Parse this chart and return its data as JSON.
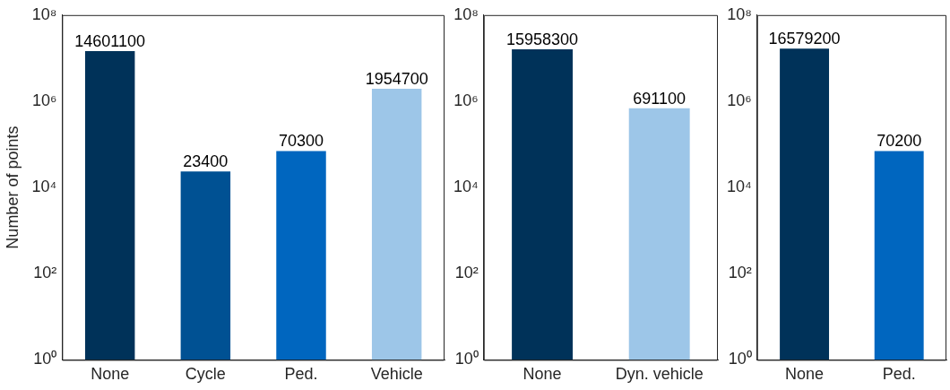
{
  "chart_data": [
    {
      "type": "bar",
      "ylabel": "Number of points",
      "categories": [
        "None",
        "Cycle",
        "Ped.",
        "Vehicle"
      ],
      "values": [
        14601100,
        23400,
        70300,
        1954700
      ],
      "colors": [
        "#003259",
        "#005193",
        "#0066bf",
        "#9dc6e8"
      ],
      "log": true,
      "ylim": [
        1,
        100000000
      ],
      "yticks": [
        {
          "value": 1,
          "label": "10⁰"
        },
        {
          "value": 100,
          "label": "10²"
        },
        {
          "value": 10000,
          "label": "10⁴"
        },
        {
          "value": 1000000,
          "label": "10⁶"
        },
        {
          "value": 100000000,
          "label": "10⁸"
        }
      ],
      "data_labels": true,
      "grid": false,
      "legend": false
    },
    {
      "type": "bar",
      "categories": [
        "None",
        "Dyn. vehicle"
      ],
      "values": [
        15958300,
        691100
      ],
      "colors": [
        "#003259",
        "#9dc6e8"
      ],
      "log": true,
      "ylim": [
        1,
        100000000
      ],
      "yticks": [
        {
          "value": 1,
          "label": "10⁰"
        },
        {
          "value": 100,
          "label": "10²"
        },
        {
          "value": 10000,
          "label": "10⁴"
        },
        {
          "value": 1000000,
          "label": "10⁶"
        },
        {
          "value": 100000000,
          "label": "10⁸"
        }
      ],
      "data_labels": true,
      "grid": false,
      "legend": false
    },
    {
      "type": "bar",
      "categories": [
        "None",
        "Ped."
      ],
      "values": [
        16579200,
        70200
      ],
      "colors": [
        "#003259",
        "#0066bf"
      ],
      "log": true,
      "ylim": [
        1,
        100000000
      ],
      "yticks": [
        {
          "value": 1,
          "label": "10⁰"
        },
        {
          "value": 100,
          "label": "10²"
        },
        {
          "value": 10000,
          "label": "10⁴"
        },
        {
          "value": 1000000,
          "label": "10⁶"
        },
        {
          "value": 100000000,
          "label": "10⁸"
        }
      ],
      "data_labels": true,
      "grid": false,
      "legend": false
    }
  ]
}
